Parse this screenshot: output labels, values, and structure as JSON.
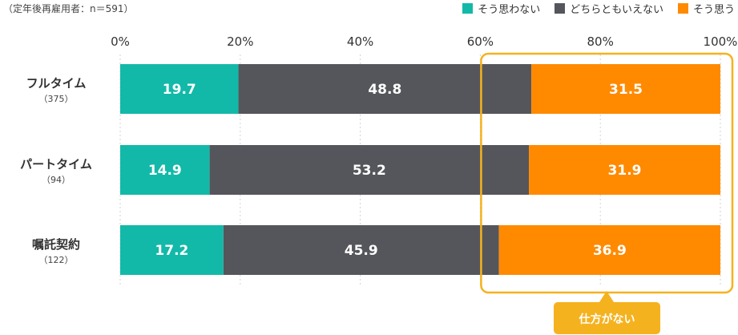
{
  "note": "（定年後再雇用者：n＝591）",
  "chart_data": {
    "type": "bar",
    "orientation": "horizontal",
    "stacked": true,
    "xlim": [
      0,
      100
    ],
    "x_ticks": [
      "0%",
      "20%",
      "40%",
      "60%",
      "80%",
      "100%"
    ],
    "grid": true,
    "legend_position": "top-right",
    "categories": [
      {
        "label": "フルタイム",
        "n": "（375）"
      },
      {
        "label": "パートタイム",
        "n": "（94）"
      },
      {
        "label": "嘱託契約",
        "n": "（122）"
      }
    ],
    "series": [
      {
        "name": "そう思わない",
        "color": "#12b9a8",
        "values": [
          19.7,
          14.9,
          17.2
        ]
      },
      {
        "name": "どちらともいえない",
        "color": "#55565b",
        "values": [
          48.8,
          53.2,
          45.9
        ]
      },
      {
        "name": "そう思う",
        "color": "#ff8a00",
        "values": [
          31.5,
          31.9,
          36.9
        ]
      }
    ],
    "annotation": {
      "text": "仕方がない",
      "range": [
        60,
        100
      ],
      "color": "#f5b21f"
    }
  }
}
